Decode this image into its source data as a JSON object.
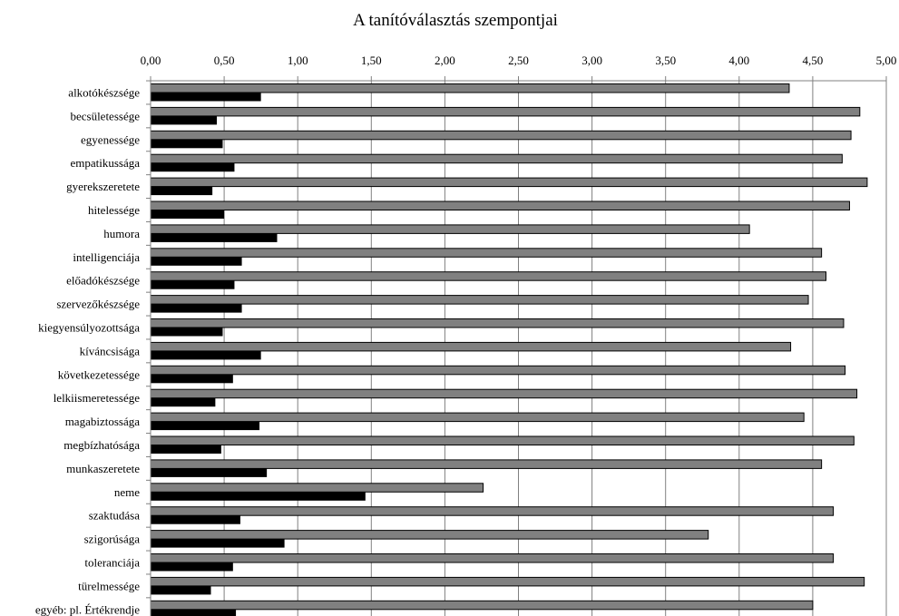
{
  "chart_data": {
    "type": "bar",
    "orientation": "horizontal",
    "title": "A tanítóválasztás szempontjai",
    "xlim": [
      0,
      5
    ],
    "x_ticks": [
      "0,00",
      "0,50",
      "1,00",
      "1,50",
      "2,00",
      "2,50",
      "3,00",
      "3,50",
      "4,00",
      "4,50",
      "5,00"
    ],
    "x_axis_position": "top",
    "grid": "vertical",
    "legend": "none",
    "categories": [
      "alkotókészsége",
      "becsületessége",
      "egyenessége",
      "empatikussága",
      "gyerekszeretete",
      "hitelessége",
      "humora",
      "intelligenciája",
      "előadókészsége",
      "szervezőkészsége",
      "kiegyensúlyozottsága",
      "kíváncsisága",
      "következetessége",
      "lelkiismeretessége",
      "magabiztossága",
      "megbízhatósága",
      "munkaszeretete",
      "neme",
      "szaktudása",
      "szigorúsága",
      "toleranciája",
      "türelmessége",
      "egyéb: pl. Értékrendje"
    ],
    "series": [
      {
        "color": "#808080",
        "values": [
          4.34,
          4.82,
          4.76,
          4.7,
          4.87,
          4.75,
          4.07,
          4.56,
          4.59,
          4.47,
          4.71,
          4.35,
          4.72,
          4.8,
          4.44,
          4.78,
          4.56,
          2.26,
          4.64,
          3.79,
          4.64,
          4.85,
          4.5
        ]
      },
      {
        "color": "#000000",
        "values": [
          0.75,
          0.45,
          0.49,
          0.57,
          0.42,
          0.5,
          0.86,
          0.62,
          0.57,
          0.62,
          0.49,
          0.75,
          0.56,
          0.44,
          0.74,
          0.48,
          0.79,
          1.46,
          0.61,
          0.91,
          0.56,
          0.41,
          0.58
        ]
      }
    ]
  }
}
